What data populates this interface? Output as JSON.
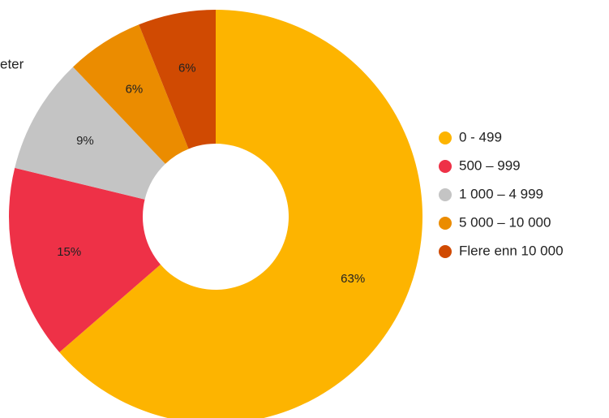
{
  "chart_data": {
    "type": "pie",
    "title": "eter",
    "categories": [
      "0 - 499",
      "500 – 999",
      "1 000 – 4 999",
      "5 000 – 10 000",
      "Flere enn 10 000"
    ],
    "values": [
      63,
      15,
      9,
      6,
      6
    ],
    "value_labels": [
      "63%",
      "15%",
      "9%",
      "6%",
      "6%"
    ],
    "colors": [
      "#fdb400",
      "#ee3147",
      "#c4c4c4",
      "#eb8c00",
      "#d04a02"
    ],
    "donut": true,
    "legend": "right"
  }
}
